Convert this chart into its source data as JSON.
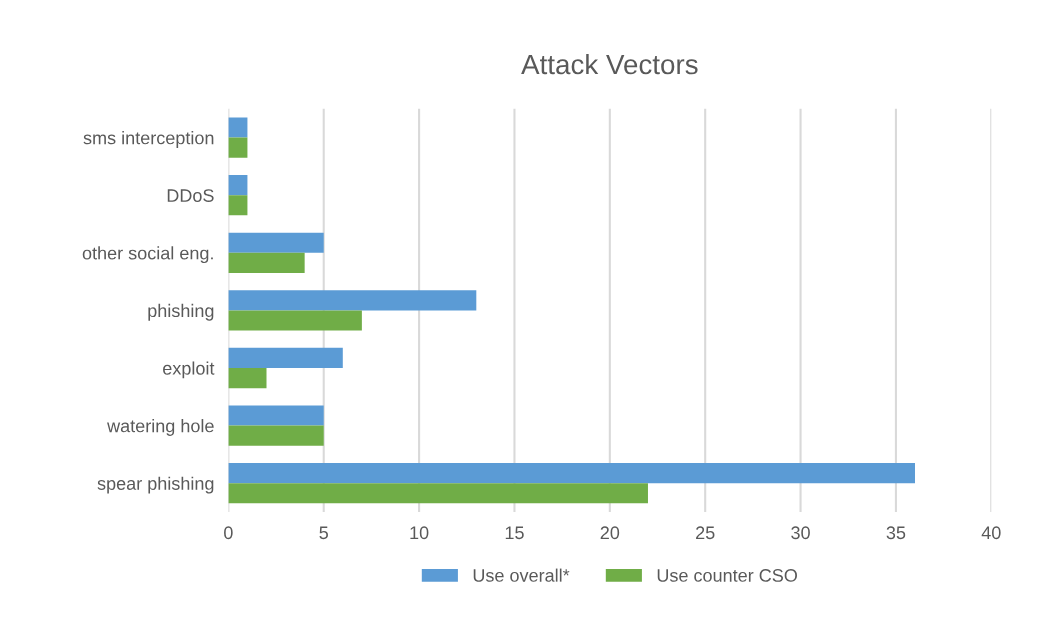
{
  "chart_data": {
    "type": "bar",
    "orientation": "horizontal",
    "title": "Attack Vectors",
    "categories": [
      "sms interception",
      "DDoS",
      "other social eng.",
      "phishing",
      "exploit",
      "watering hole",
      "spear phishing"
    ],
    "series": [
      {
        "name": "Use overall*",
        "color": "#5b9bd5",
        "values": [
          1,
          1,
          5,
          13,
          6,
          5,
          36
        ]
      },
      {
        "name": "Use counter CSO",
        "color": "#70ad47",
        "values": [
          1,
          1,
          4,
          7,
          2,
          5,
          22
        ]
      }
    ],
    "xlim": [
      0,
      40
    ],
    "xticks": [
      0,
      5,
      10,
      15,
      20,
      25,
      30,
      35,
      40
    ],
    "grid": "x",
    "legend": "bottom"
  }
}
